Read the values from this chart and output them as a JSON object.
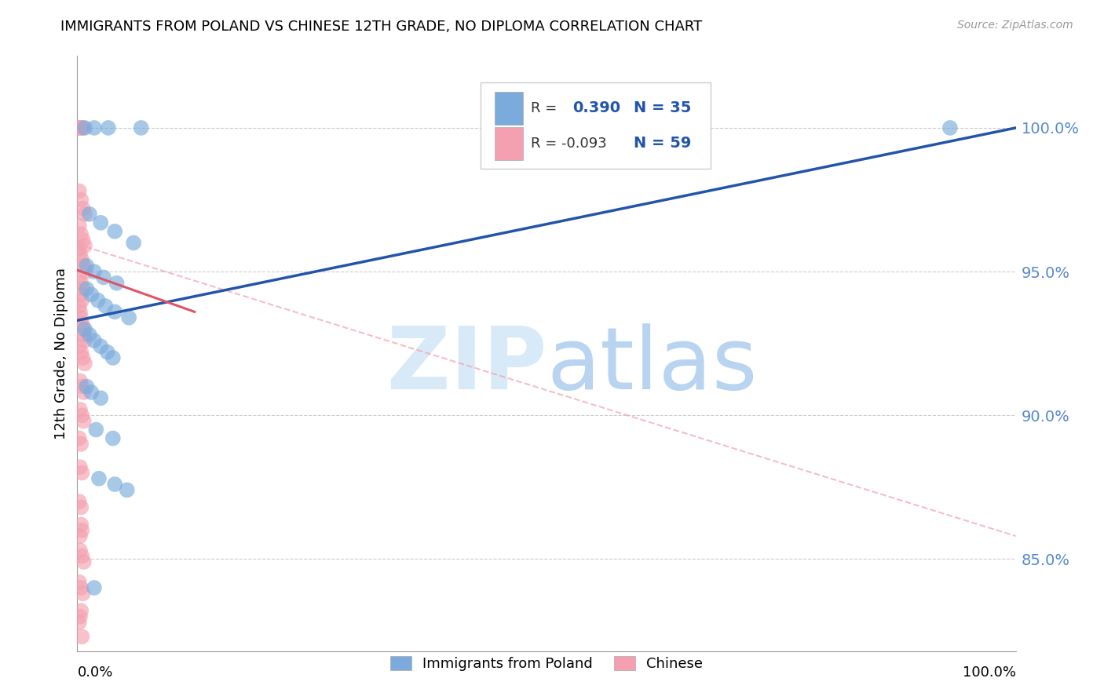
{
  "title": "IMMIGRANTS FROM POLAND VS CHINESE 12TH GRADE, NO DIPLOMA CORRELATION CHART",
  "source": "Source: ZipAtlas.com",
  "ylabel": "12th Grade, No Diploma",
  "legend_label_blue": "Immigrants from Poland",
  "legend_label_pink": "Chinese",
  "background_color": "#ffffff",
  "blue_scatter_color": "#7aabdc",
  "pink_scatter_color": "#f5a0b0",
  "blue_line_color": "#2255aa",
  "pink_line_color": "#dd5566",
  "pink_dash_color": "#f5a0b0",
  "ytick_color": "#5588cc",
  "grid_color": "#cccccc",
  "xlim": [
    0.0,
    1.0
  ],
  "ylim": [
    0.818,
    1.025
  ],
  "blue_line": {
    "x0": 0.0,
    "y0": 0.933,
    "x1": 1.0,
    "y1": 1.0
  },
  "pink_solid_line": {
    "x0": 0.0,
    "y0": 0.9505,
    "x1": 0.125,
    "y1": 0.936
  },
  "pink_dash_line": {
    "x0": 0.0,
    "y0": 0.9595,
    "x1": 1.0,
    "y1": 0.858
  },
  "poland_x": [
    0.008,
    0.018,
    0.033,
    0.068,
    0.5,
    0.93,
    0.013,
    0.025,
    0.04,
    0.06,
    0.01,
    0.018,
    0.028,
    0.042,
    0.01,
    0.015,
    0.022,
    0.03,
    0.04,
    0.055,
    0.008,
    0.013,
    0.018,
    0.025,
    0.032,
    0.038,
    0.01,
    0.015,
    0.025,
    0.02,
    0.038,
    0.023,
    0.04,
    0.053,
    0.018
  ],
  "poland_y": [
    1.0,
    1.0,
    1.0,
    1.0,
    1.0,
    1.0,
    0.97,
    0.967,
    0.964,
    0.96,
    0.952,
    0.95,
    0.948,
    0.946,
    0.944,
    0.942,
    0.94,
    0.938,
    0.936,
    0.934,
    0.93,
    0.928,
    0.926,
    0.924,
    0.922,
    0.92,
    0.91,
    0.908,
    0.906,
    0.895,
    0.892,
    0.878,
    0.876,
    0.874,
    0.84
  ],
  "chinese_x": [
    0.002,
    0.004,
    0.006,
    0.002,
    0.004,
    0.002,
    0.004,
    0.006,
    0.008,
    0.002,
    0.004,
    0.006,
    0.008,
    0.002,
    0.003,
    0.005,
    0.007,
    0.009,
    0.002,
    0.004,
    0.006,
    0.003,
    0.005,
    0.002,
    0.003,
    0.004,
    0.005,
    0.006,
    0.007,
    0.008,
    0.002,
    0.004,
    0.006,
    0.008,
    0.003,
    0.005,
    0.007,
    0.003,
    0.005,
    0.007,
    0.002,
    0.004,
    0.003,
    0.005,
    0.002,
    0.004,
    0.004,
    0.005,
    0.003,
    0.003,
    0.005,
    0.007,
    0.002,
    0.004,
    0.006,
    0.004,
    0.003,
    0.002,
    0.005
  ],
  "chinese_y": [
    1.0,
    1.0,
    1.0,
    1.0,
    1.0,
    0.978,
    0.975,
    0.972,
    0.97,
    0.966,
    0.963,
    0.961,
    0.959,
    0.958,
    0.956,
    0.954,
    0.952,
    0.95,
    0.948,
    0.946,
    0.944,
    0.942,
    0.94,
    0.938,
    0.936,
    0.934,
    0.932,
    0.93,
    0.928,
    0.926,
    0.924,
    0.922,
    0.92,
    0.918,
    0.912,
    0.91,
    0.908,
    0.902,
    0.9,
    0.898,
    0.892,
    0.89,
    0.882,
    0.88,
    0.87,
    0.868,
    0.862,
    0.86,
    0.858,
    0.853,
    0.851,
    0.849,
    0.842,
    0.84,
    0.838,
    0.832,
    0.83,
    0.828,
    0.823
  ]
}
